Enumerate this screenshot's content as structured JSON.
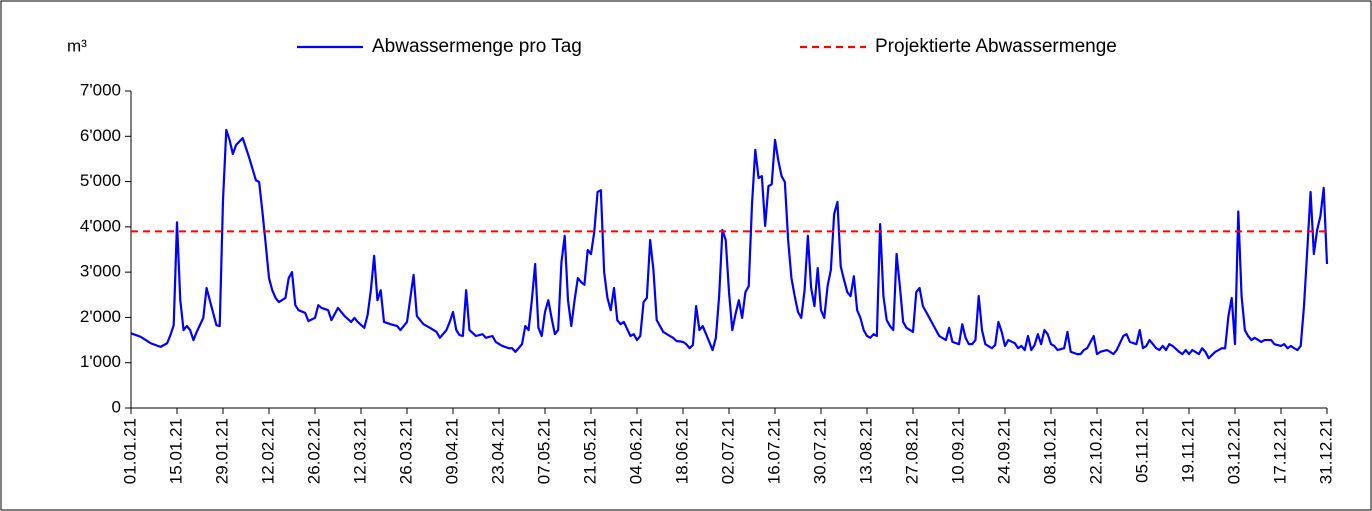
{
  "chart_data": {
    "type": "line",
    "y_label": "m³",
    "xlim": [
      "01.01.21",
      "31.12.21"
    ],
    "xticks": [
      "01.01.21",
      "15.01.21",
      "29.01.21",
      "12.02.21",
      "26.02.21",
      "12.03.21",
      "26.03.21",
      "09.04.21",
      "23.04.21",
      "07.05.21",
      "21.05.21",
      "04.06.21",
      "18.06.21",
      "02.07.21",
      "16.07.21",
      "30.07.21",
      "13.08.21",
      "27.08.21",
      "10.09.21",
      "24.09.21",
      "08.10.21",
      "22.10.21",
      "05.11.21",
      "19.11.21",
      "03.12.21",
      "17.12.21",
      "31.12.21"
    ],
    "ylim": [
      0,
      7000
    ],
    "yticks": [
      0,
      {
        "value": 1000,
        "label": "1'000"
      },
      {
        "value": 2000,
        "label": "2'000"
      },
      {
        "value": 3000,
        "label": "3'000"
      },
      {
        "value": 4000,
        "label": "4'000"
      },
      {
        "value": 5000,
        "label": "5'000"
      },
      {
        "value": 6000,
        "label": "6'000"
      },
      {
        "value": 7000,
        "label": "7'000"
      }
    ],
    "grid": false,
    "legend": "top",
    "series": [
      {
        "name": "Abwassermenge pro Tag",
        "color": "#0000ff",
        "dashed": false,
        "x": [
          "01.01.21",
          "04.01.21",
          "07.01.21",
          "10.01.21",
          "12.01.21",
          "13.01.21",
          "14.01.21",
          "15.01.21",
          "16.01.21",
          "17.01.21",
          "18.01.21",
          "19.01.21",
          "20.01.21",
          "21.01.21",
          "23.01.21",
          "24.01.21",
          "26.01.21",
          "27.01.21",
          "28.01.21",
          "29.01.21",
          "30.01.21",
          "31.01.21",
          "01.02.21",
          "02.02.21",
          "04.02.21",
          "06.02.21",
          "08.02.21",
          "09.02.21",
          "10.02.21",
          "11.02.21",
          "12.02.21",
          "13.02.21",
          "14.02.21",
          "15.02.21",
          "17.02.21",
          "18.02.21",
          "19.02.21",
          "20.02.21",
          "21.02.21",
          "23.02.21",
          "24.02.21",
          "26.02.21",
          "27.02.21",
          "28.02.21",
          "02.03.21",
          "03.03.21",
          "05.03.21",
          "07.03.21",
          "09.03.21",
          "10.03.21",
          "11.03.21",
          "13.03.21",
          "14.03.21",
          "15.03.21",
          "16.03.21",
          "17.03.21",
          "18.03.21",
          "19.03.21",
          "21.03.21",
          "23.03.21",
          "24.03.21",
          "26.03.21",
          "28.03.21",
          "29.03.21",
          "31.03.21",
          "02.04.21",
          "04.04.21",
          "05.04.21",
          "07.04.21",
          "08.04.21",
          "09.04.21",
          "10.04.21",
          "11.04.21",
          "12.04.21",
          "13.04.21",
          "14.04.21",
          "16.04.21",
          "18.04.21",
          "19.04.21",
          "21.04.21",
          "22.04.21",
          "24.04.21",
          "26.04.21",
          "27.04.21",
          "28.04.21",
          "30.04.21",
          "01.05.21",
          "02.05.21",
          "03.05.21",
          "04.05.21",
          "05.05.21",
          "06.05.21",
          "07.05.21",
          "08.05.21",
          "09.05.21",
          "10.05.21",
          "11.05.21",
          "12.05.21",
          "13.05.21",
          "14.05.21",
          "15.05.21",
          "16.05.21",
          "17.05.21",
          "18.05.21",
          "19.05.21",
          "20.05.21",
          "21.05.21",
          "22.05.21",
          "23.05.21",
          "24.05.21",
          "25.05.21",
          "26.05.21",
          "27.05.21",
          "28.05.21",
          "29.05.21",
          "30.05.21",
          "31.05.21",
          "02.06.21",
          "03.06.21",
          "04.06.21",
          "05.06.21",
          "06.06.21",
          "07.06.21",
          "08.06.21",
          "09.06.21",
          "10.06.21",
          "11.06.21",
          "12.06.21",
          "14.06.21",
          "15.06.21",
          "16.06.21",
          "18.06.21",
          "19.06.21",
          "20.06.21",
          "21.06.21",
          "22.06.21",
          "23.06.21",
          "24.06.21",
          "26.06.21",
          "27.06.21",
          "28.06.21",
          "29.06.21",
          "30.06.21",
          "01.07.21",
          "02.07.21",
          "03.07.21",
          "04.07.21",
          "05.07.21",
          "06.07.21",
          "07.07.21",
          "08.07.21",
          "09.07.21",
          "10.07.21",
          "11.07.21",
          "12.07.21",
          "13.07.21",
          "14.07.21",
          "15.07.21",
          "16.07.21",
          "17.07.21",
          "18.07.21",
          "19.07.21",
          "20.07.21",
          "21.07.21",
          "22.07.21",
          "23.07.21",
          "24.07.21",
          "25.07.21",
          "26.07.21",
          "27.07.21",
          "28.07.21",
          "29.07.21",
          "30.07.21",
          "31.07.21",
          "01.08.21",
          "02.08.21",
          "03.08.21",
          "04.08.21",
          "05.08.21",
          "06.08.21",
          "07.08.21",
          "08.08.21",
          "09.08.21",
          "10.08.21",
          "11.08.21",
          "12.08.21",
          "13.08.21",
          "14.08.21",
          "15.08.21",
          "16.08.21",
          "17.08.21",
          "18.08.21",
          "19.08.21",
          "20.08.21",
          "21.08.21",
          "22.08.21",
          "23.08.21",
          "24.08.21",
          "25.08.21",
          "27.08.21",
          "28.08.21",
          "29.08.21",
          "30.08.21",
          "01.09.21",
          "03.09.21",
          "04.09.21",
          "06.09.21",
          "07.09.21",
          "08.09.21",
          "10.09.21",
          "11.09.21",
          "12.09.21",
          "13.09.21",
          "14.09.21",
          "15.09.21",
          "16.09.21",
          "17.09.21",
          "18.09.21",
          "20.09.21",
          "21.09.21",
          "22.09.21",
          "23.09.21",
          "24.09.21",
          "25.09.21",
          "27.09.21",
          "28.09.21",
          "29.09.21",
          "30.09.21",
          "01.10.21",
          "02.10.21",
          "03.10.21",
          "04.10.21",
          "05.10.21",
          "06.10.21",
          "07.10.21",
          "08.10.21",
          "09.10.21",
          "10.10.21",
          "12.10.21",
          "13.10.21",
          "14.10.21",
          "16.10.21",
          "17.10.21",
          "18.10.21",
          "19.10.21",
          "21.10.21",
          "22.10.21",
          "23.10.21",
          "25.10.21",
          "26.10.21",
          "27.10.21",
          "28.10.21",
          "30.10.21",
          "31.10.21",
          "01.11.21",
          "03.11.21",
          "04.11.21",
          "05.11.21",
          "06.11.21",
          "07.11.21",
          "09.11.21",
          "10.11.21",
          "11.11.21",
          "12.11.21",
          "13.11.21",
          "14.11.21",
          "16.11.21",
          "17.11.21",
          "18.11.21",
          "19.11.21",
          "20.11.21",
          "22.11.21",
          "23.11.21",
          "24.11.21",
          "25.11.21",
          "27.11.21",
          "28.11.21",
          "29.11.21",
          "30.11.21",
          "01.12.21",
          "02.12.21",
          "03.12.21",
          "04.12.21",
          "05.12.21",
          "06.12.21",
          "07.12.21",
          "08.12.21",
          "09.12.21",
          "11.12.21",
          "12.12.21",
          "13.12.21",
          "14.12.21",
          "15.12.21",
          "17.12.21",
          "18.12.21",
          "19.12.21",
          "20.12.21",
          "21.12.21",
          "22.12.21",
          "23.12.21",
          "24.12.21",
          "25.12.21",
          "26.12.21",
          "27.12.21",
          "28.12.21",
          "29.12.21",
          "30.12.21",
          "31.12.21"
        ],
        "values": [
          1650,
          1570,
          1430,
          1350,
          1430,
          1610,
          1830,
          4100,
          2380,
          1720,
          1810,
          1720,
          1500,
          1680,
          1990,
          2650,
          2100,
          1830,
          1810,
          4590,
          6140,
          5920,
          5610,
          5810,
          5960,
          5520,
          5030,
          4990,
          4330,
          3620,
          2870,
          2600,
          2430,
          2340,
          2430,
          2870,
          3000,
          2270,
          2160,
          2100,
          1920,
          1990,
          2270,
          2210,
          2160,
          1940,
          2210,
          2030,
          1900,
          1990,
          1900,
          1770,
          2050,
          2600,
          3360,
          2380,
          2600,
          1900,
          1850,
          1810,
          1720,
          1900,
          2940,
          2030,
          1850,
          1770,
          1680,
          1550,
          1720,
          1900,
          2120,
          1720,
          1610,
          1590,
          2600,
          1720,
          1590,
          1630,
          1550,
          1590,
          1460,
          1370,
          1320,
          1320,
          1240,
          1410,
          1810,
          1720,
          2380,
          3180,
          1770,
          1590,
          2120,
          2380,
          1990,
          1630,
          1720,
          3220,
          3800,
          2380,
          1810,
          2380,
          2870,
          2780,
          2720,
          3490,
          3400,
          3890,
          4770,
          4810,
          3000,
          2430,
          2160,
          2650,
          1940,
          1850,
          1900,
          1590,
          1630,
          1500,
          1590,
          2340,
          2430,
          3710,
          3050,
          1940,
          1810,
          1680,
          1590,
          1550,
          1480,
          1460,
          1410,
          1320,
          1390,
          2250,
          1720,
          1810,
          1460,
          1280,
          1550,
          2470,
          3930,
          3710,
          2560,
          1720,
          2080,
          2380,
          1990,
          2560,
          2690,
          4500,
          5700,
          5080,
          5120,
          4020,
          4900,
          4940,
          5920,
          5470,
          5120,
          4990,
          3710,
          2870,
          2470,
          2120,
          1990,
          2600,
          3800,
          2650,
          2250,
          3090,
          2160,
          1990,
          2690,
          3050,
          4280,
          4550,
          3130,
          2830,
          2560,
          2470,
          2910,
          2160,
          1990,
          1720,
          1590,
          1550,
          1630,
          1590,
          4060,
          2470,
          1940,
          1810,
          1720,
          3400,
          2690,
          1900,
          1770,
          1680,
          2560,
          2650,
          2250,
          1990,
          1720,
          1590,
          1500,
          1770,
          1460,
          1410,
          1850,
          1550,
          1410,
          1410,
          1500,
          2470,
          1720,
          1410,
          1320,
          1390,
          1900,
          1680,
          1370,
          1500,
          1430,
          1320,
          1370,
          1280,
          1590,
          1280,
          1390,
          1630,
          1410,
          1720,
          1630,
          1410,
          1370,
          1280,
          1320,
          1680,
          1240,
          1190,
          1190,
          1280,
          1320,
          1590,
          1190,
          1240,
          1280,
          1240,
          1190,
          1280,
          1590,
          1630,
          1460,
          1410,
          1720,
          1320,
          1370,
          1500,
          1320,
          1280,
          1370,
          1280,
          1410,
          1370,
          1240,
          1190,
          1280,
          1190,
          1280,
          1190,
          1320,
          1240,
          1100,
          1240,
          1280,
          1320,
          1320,
          2030,
          2430,
          1410,
          4340,
          2470,
          1720,
          1590,
          1500,
          1550,
          1460,
          1500,
          1500,
          1500,
          1410,
          1370,
          1410,
          1320,
          1370,
          1320,
          1280,
          1370,
          2250,
          3490,
          4770,
          3400,
          3930,
          4240,
          4860,
          3180
        ]
      },
      {
        "name": "Projektierte Abwassermenge",
        "color": "#ff0000",
        "dashed": true,
        "x": [
          "01.01.21",
          "31.12.21"
        ],
        "values": [
          3900,
          3900
        ]
      }
    ]
  }
}
